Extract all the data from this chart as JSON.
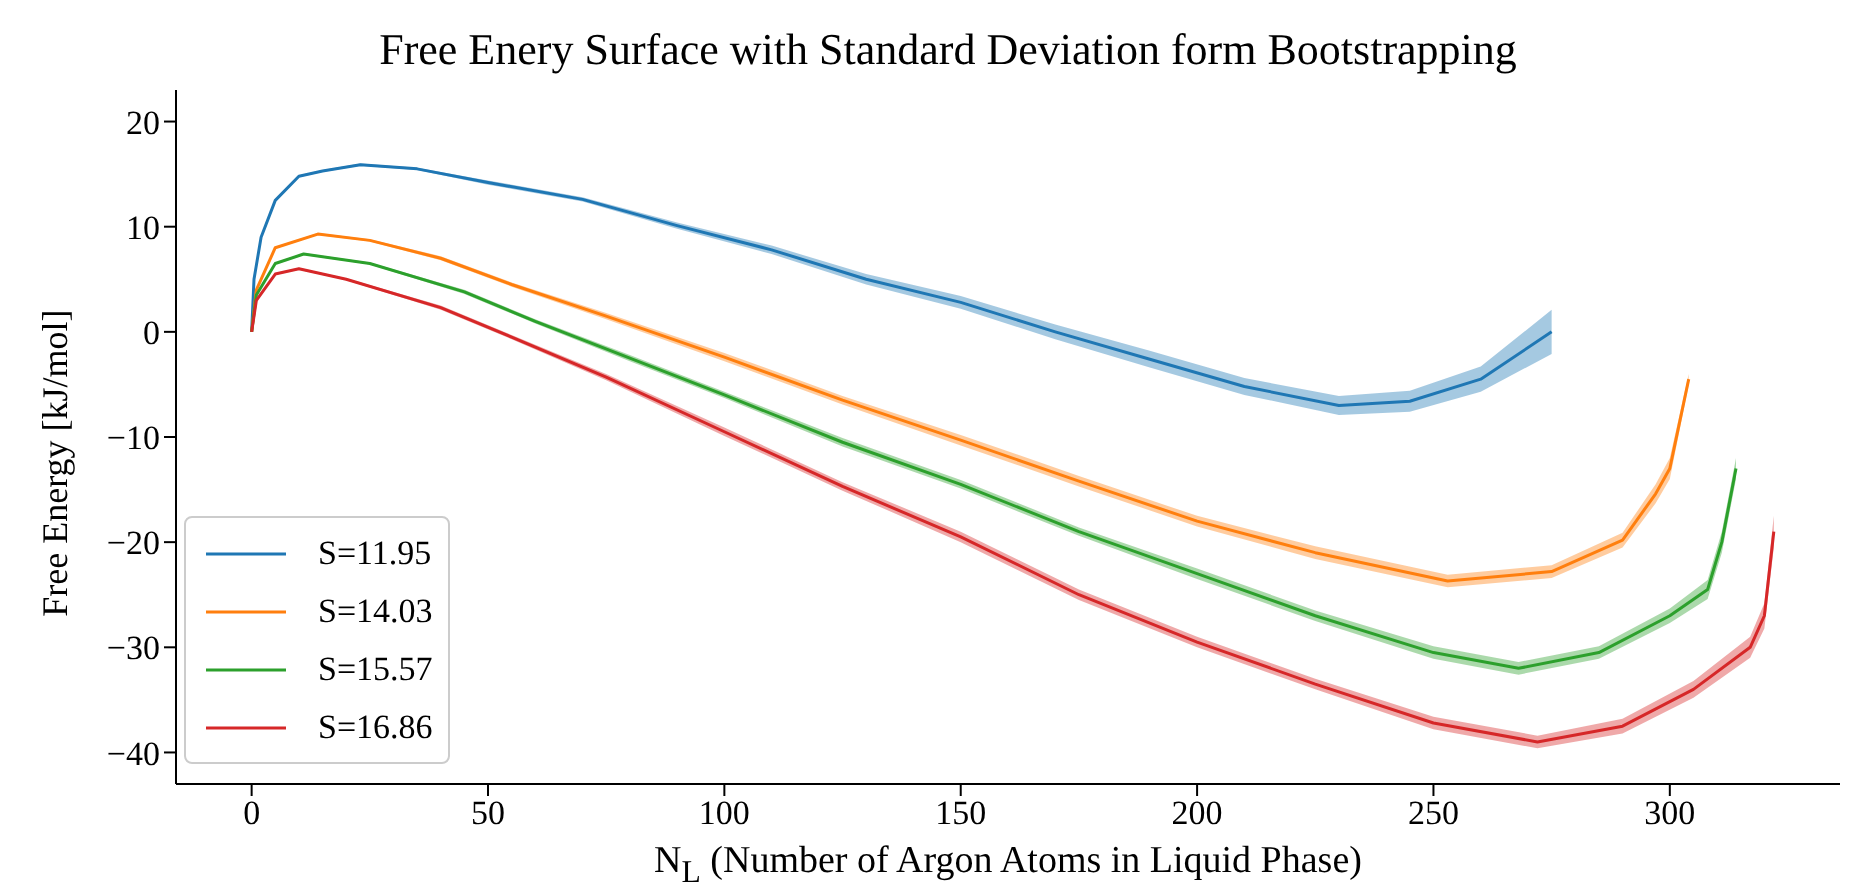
{
  "chart_data": {
    "type": "line",
    "title": "Free Enery Surface with Standard Deviation form Bootstrapping",
    "xlabel": "N$_{L}$ (Number of Argon Atoms in Liquid Phase)",
    "ylabel": "Free Energy [kJ/mol]",
    "xlim": [
      -16,
      336
    ],
    "ylim": [
      -43,
      23
    ],
    "xticks": [
      0,
      50,
      100,
      150,
      200,
      250,
      300
    ],
    "yticks": [
      -40,
      -30,
      -20,
      -10,
      0,
      10,
      20
    ],
    "grid": false,
    "legend": "bottom left",
    "marker": "none",
    "line_style": "solid",
    "series": [
      {
        "name": "S=11.95",
        "color": "#1f77b4",
        "x": [
          0,
          0.5,
          2,
          5,
          10,
          15,
          23,
          35,
          50,
          70,
          90,
          110,
          130,
          150,
          170,
          190,
          210,
          230,
          245,
          260,
          275
        ],
        "values": [
          0,
          5,
          9,
          12.5,
          14.8,
          15.3,
          15.9,
          15.5,
          14.2,
          12.6,
          10.1,
          7.8,
          5,
          2.8,
          0,
          -2.6,
          -5.2,
          -7,
          -6.6,
          -4.5,
          0
        ],
        "lower": [
          0,
          4.9,
          8.9,
          12.4,
          14.7,
          15.2,
          15.8,
          15.4,
          14,
          12.4,
          9.8,
          7.4,
          4.5,
          2.2,
          -0.7,
          -3.4,
          -6,
          -7.9,
          -7.6,
          -5.7,
          -2.1
        ],
        "upper": [
          0,
          5.1,
          9.1,
          12.6,
          14.9,
          15.4,
          16,
          15.6,
          14.4,
          12.8,
          10.4,
          8.2,
          5.5,
          3.4,
          0.7,
          -1.8,
          -4.4,
          -6.1,
          -5.6,
          -3.3,
          2.1
        ]
      },
      {
        "name": "S=14.03",
        "color": "#ff7f0e",
        "x": [
          0,
          1,
          5,
          14,
          25,
          40,
          55,
          75,
          100,
          125,
          150,
          175,
          200,
          225,
          253,
          275,
          290,
          297,
          300,
          304
        ],
        "values": [
          0,
          4,
          8,
          9.3,
          8.7,
          7,
          4.5,
          1.5,
          -2.4,
          -6.5,
          -10.3,
          -14.2,
          -18,
          -21,
          -23.7,
          -22.8,
          -19.8,
          -15.4,
          -13,
          -4.5
        ],
        "lower": [
          0,
          3.9,
          7.9,
          9.2,
          8.6,
          6.8,
          4.3,
          1.2,
          -2.8,
          -6.9,
          -10.8,
          -14.7,
          -18.5,
          -21.6,
          -24.3,
          -23.4,
          -20.5,
          -16.3,
          -14,
          -5
        ],
        "upper": [
          0,
          4.1,
          8.1,
          9.4,
          8.8,
          7.2,
          4.7,
          1.8,
          -2,
          -6.1,
          -9.8,
          -13.7,
          -17.5,
          -20.4,
          -23.1,
          -22.2,
          -19.1,
          -14.5,
          -12,
          -4
        ]
      },
      {
        "name": "S=15.57",
        "color": "#2ca02c",
        "x": [
          0,
          1,
          5,
          11,
          25,
          45,
          60,
          80,
          100,
          125,
          150,
          175,
          200,
          225,
          250,
          268,
          285,
          300,
          308,
          311,
          314
        ],
        "values": [
          0,
          3.5,
          6.5,
          7.4,
          6.5,
          3.8,
          1,
          -2.5,
          -6,
          -10.5,
          -14.5,
          -19,
          -23,
          -27,
          -30.5,
          -32,
          -30.5,
          -27,
          -24.5,
          -20,
          -13
        ],
        "lower": [
          0,
          3.4,
          6.4,
          7.3,
          6.4,
          3.6,
          0.8,
          -2.8,
          -6.3,
          -10.9,
          -14.9,
          -19.4,
          -23.5,
          -27.5,
          -31.1,
          -32.6,
          -31.1,
          -27.7,
          -25.4,
          -21,
          -14
        ],
        "upper": [
          0,
          3.6,
          6.6,
          7.5,
          6.6,
          4,
          1.2,
          -2.2,
          -5.7,
          -10.1,
          -14.1,
          -18.6,
          -22.5,
          -26.5,
          -29.9,
          -31.4,
          -29.9,
          -26.3,
          -23.6,
          -19,
          -12
        ]
      },
      {
        "name": "S=16.86",
        "color": "#d62728",
        "x": [
          0,
          1,
          5,
          10,
          20,
          40,
          55,
          75,
          100,
          125,
          150,
          175,
          200,
          225,
          250,
          272,
          290,
          305,
          317,
          320,
          322
        ],
        "values": [
          0,
          3,
          5.5,
          6,
          5,
          2.3,
          -0.5,
          -4.3,
          -9.5,
          -14.7,
          -19.5,
          -25,
          -29.5,
          -33.5,
          -37.2,
          -39,
          -37.5,
          -34,
          -30,
          -27,
          -19
        ],
        "lower": [
          0,
          2.9,
          5.4,
          5.9,
          4.9,
          2.1,
          -0.7,
          -4.6,
          -9.9,
          -15.1,
          -20,
          -25.5,
          -30,
          -34,
          -37.8,
          -39.6,
          -38.2,
          -34.8,
          -31,
          -28.2,
          -20.5
        ],
        "upper": [
          0,
          3.1,
          5.6,
          6.1,
          5.1,
          2.5,
          -0.3,
          -4,
          -9.1,
          -14.3,
          -19,
          -24.5,
          -29,
          -33,
          -36.6,
          -38.4,
          -36.8,
          -33.2,
          -29,
          -25.8,
          -17.5
        ]
      }
    ]
  }
}
